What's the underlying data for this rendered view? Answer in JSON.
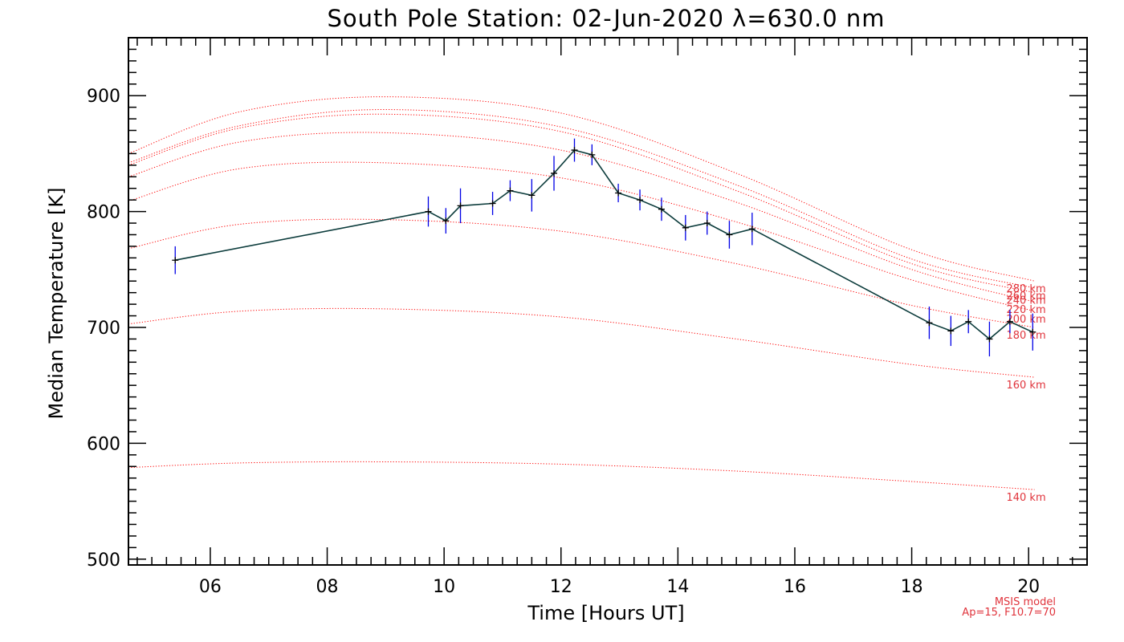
{
  "chart_data": {
    "type": "line",
    "title": "South Pole Station: 02-Jun-2020 λ=630.0 nm",
    "xlabel": "Time [Hours UT]",
    "ylabel": "Median Temperature [K]",
    "xlim": [
      4.6,
      21.0
    ],
    "ylim": [
      495,
      950
    ],
    "x_ticks": [
      6,
      8,
      10,
      12,
      14,
      16,
      18,
      20
    ],
    "x_tick_labels": [
      "06",
      "08",
      "10",
      "12",
      "14",
      "16",
      "18",
      "20"
    ],
    "y_ticks": [
      500,
      600,
      700,
      800,
      900
    ],
    "y_tick_labels": [
      "500",
      "600",
      "700",
      "800",
      "900"
    ],
    "colors": {
      "data_line": "#0c3c3c",
      "error_bar": "#0000e6",
      "marker": "#000000",
      "model": "#ff0000",
      "model_text": "#e0343c"
    },
    "series": [
      {
        "name": "Median Temperature",
        "x": [
          5.4,
          9.73,
          10.03,
          10.28,
          10.83,
          11.13,
          11.5,
          11.88,
          12.23,
          12.53,
          12.98,
          13.35,
          13.72,
          14.13,
          14.5,
          14.88,
          15.27,
          18.3,
          18.67,
          18.97,
          19.33,
          19.68,
          20.07
        ],
        "y": [
          758,
          800,
          792,
          805,
          807,
          818,
          814,
          833,
          853,
          849,
          816,
          810,
          802,
          786,
          790,
          780,
          785,
          704,
          697,
          705,
          690,
          705,
          696
        ],
        "err": [
          12,
          13,
          11,
          15,
          10,
          9,
          14,
          15,
          10,
          9,
          8,
          9,
          10,
          11,
          10,
          12,
          14,
          14,
          13,
          10,
          15,
          10,
          16
        ]
      }
    ],
    "model_series": [
      {
        "name": "140 km",
        "x": [
          4.6,
          6.5,
          9.0,
          12.0,
          15.0,
          18.0,
          20.1
        ],
        "y": [
          579,
          583,
          584,
          582,
          576,
          567,
          560
        ]
      },
      {
        "name": "160 km",
        "x": [
          4.6,
          6.5,
          9.0,
          12.0,
          15.0,
          18.0,
          20.1
        ],
        "y": [
          703,
          714,
          716,
          709,
          690,
          668,
          657
        ]
      },
      {
        "name": "180 km",
        "x": [
          4.6,
          6.5,
          9.0,
          12.0,
          15.0,
          18.0,
          20.1
        ],
        "y": [
          768,
          789,
          793,
          783,
          755,
          719,
          700
        ]
      },
      {
        "name": "200 km",
        "x": [
          4.6,
          6.5,
          9.0,
          12.0,
          15.0,
          18.0,
          20.1
        ],
        "y": [
          809,
          837,
          842,
          829,
          791,
          741,
          714
        ]
      },
      {
        "name": "220 km",
        "x": [
          4.6,
          6.5,
          9.0,
          12.0,
          15.0,
          18.0,
          20.1
        ],
        "y": [
          830,
          860,
          868,
          853,
          808,
          750,
          722
        ]
      },
      {
        "name": "240 km",
        "x": [
          4.6,
          6.5,
          9.0,
          12.0,
          15.0,
          18.0,
          20.1
        ],
        "y": [
          840,
          872,
          884,
          869,
          818,
          755,
          730
        ]
      },
      {
        "name": "260 km",
        "x": [
          4.6,
          6.5,
          9.0,
          12.0,
          15.0,
          18.0,
          20.1
        ],
        "y": [
          842,
          874,
          888,
          873,
          823,
          759,
          734
        ]
      },
      {
        "name": "280 km",
        "x": [
          4.6,
          6.5,
          9.0,
          12.0,
          15.0,
          18.0,
          20.1
        ],
        "y": [
          850,
          886,
          899,
          885,
          833,
          767,
          740
        ]
      }
    ],
    "model_note": [
      "MSIS model",
      "Ap=15, F10.7=70"
    ],
    "grid": false,
    "legend": "none"
  }
}
